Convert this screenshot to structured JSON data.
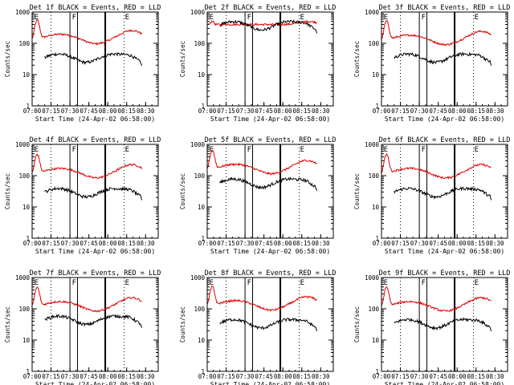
{
  "chart_data": [
    {
      "type": "line",
      "title": "Det 1f BLACK = Events, RED = LLD",
      "xlabel": "Start Time (24-Apr-02 06:58:00)",
      "ylabel": "Counts/sec",
      "x_ticks": [
        "07:00",
        "07:15",
        "07:30",
        "07:45",
        "08:00",
        "08:15",
        "08:30"
      ],
      "y_ticks": [
        "1",
        "10",
        "100",
        "1000"
      ],
      "y_scale": "log",
      "ylim": [
        1,
        1000
      ],
      "markers": [
        "E",
        "F",
        "E"
      ],
      "red_level": 160,
      "black_level": 35,
      "black_start": "07:10",
      "end": "08:27"
    },
    {
      "type": "line",
      "title": "Det 2f BLACK = Events, RED = LLD",
      "xlabel": "Start Time (24-Apr-02 06:58:00)",
      "ylabel": "Counts/sec",
      "x_ticks": [
        "07:00",
        "07:15",
        "07:30",
        "07:45",
        "08:00",
        "08:15",
        "08:30"
      ],
      "y_ticks": [
        "1",
        "10",
        "100",
        "1000"
      ],
      "y_scale": "log",
      "ylim": [
        1,
        1000
      ],
      "markers": [
        "E",
        "F",
        "E"
      ],
      "red_level": 400,
      "black_level": 380,
      "black_start": "07:10",
      "end": "08:27"
    },
    {
      "type": "line",
      "title": "Det 3f BLACK = Events, RED = LLD",
      "xlabel": "Start Time (24-Apr-02 06:58:00)",
      "ylabel": "Counts/sec",
      "x_ticks": [
        "07:00",
        "07:15",
        "07:30",
        "07:45",
        "08:00",
        "08:15",
        "08:30"
      ],
      "y_ticks": [
        "1",
        "10",
        "100",
        "1000"
      ],
      "y_scale": "log",
      "ylim": [
        1,
        1000
      ],
      "markers": [
        "E",
        "F",
        "E"
      ],
      "red_level": 150,
      "black_level": 35,
      "black_start": "07:10",
      "end": "08:27"
    },
    {
      "type": "line",
      "title": "Det 4f BLACK = Events, RED = LLD",
      "xlabel": "Start Time (24-Apr-02 06:58:00)",
      "ylabel": "Counts/sec",
      "x_ticks": [
        "07:00",
        "07:15",
        "07:30",
        "07:45",
        "08:00",
        "08:15",
        "08:30"
      ],
      "y_ticks": [
        "1",
        "10",
        "100",
        "1000"
      ],
      "y_scale": "log",
      "ylim": [
        1,
        1000
      ],
      "markers": [
        "E",
        "F",
        "E"
      ],
      "red_level": 140,
      "black_level": 30,
      "black_start": "07:10",
      "end": "08:27"
    },
    {
      "type": "line",
      "title": "Det 5f BLACK = Events, RED = LLD",
      "xlabel": "Start Time (24-Apr-02 06:58:00)",
      "ylabel": "Counts/sec",
      "x_ticks": [
        "07:00",
        "07:15",
        "07:30",
        "07:45",
        "08:00",
        "08:15",
        "08:30"
      ],
      "y_ticks": [
        "1",
        "10",
        "100",
        "1000"
      ],
      "y_scale": "log",
      "ylim": [
        1,
        1000
      ],
      "markers": [
        "E",
        "F",
        "E"
      ],
      "red_level": 190,
      "black_level": 60,
      "black_start": "07:10",
      "end": "08:27"
    },
    {
      "type": "line",
      "title": "Det 6f BLACK = Events, RED = LLD",
      "xlabel": "Start Time (24-Apr-02 06:58:00)",
      "ylabel": "Counts/sec",
      "x_ticks": [
        "07:00",
        "07:15",
        "07:30",
        "07:45",
        "08:00",
        "08:15",
        "08:30"
      ],
      "y_ticks": [
        "1",
        "10",
        "100",
        "1000"
      ],
      "y_scale": "log",
      "ylim": [
        1,
        1000
      ],
      "markers": [
        "E",
        "F",
        "E"
      ],
      "red_level": 140,
      "black_level": 30,
      "black_start": "07:10",
      "end": "08:27"
    },
    {
      "type": "line",
      "title": "Det 7f BLACK = Events, RED = LLD",
      "xlabel": "Start Time (24-Apr-02 06:58:00)",
      "ylabel": "Counts/sec",
      "x_ticks": [
        "07:00",
        "07:15",
        "07:30",
        "07:45",
        "08:00",
        "08:15",
        "08:30"
      ],
      "y_ticks": [
        "1",
        "10",
        "100",
        "1000"
      ],
      "y_scale": "log",
      "ylim": [
        1,
        1000
      ],
      "markers": [
        "E",
        "F",
        "E"
      ],
      "red_level": 140,
      "black_level": 45,
      "black_start": "07:10",
      "end": "08:27"
    },
    {
      "type": "line",
      "title": "Det 8f BLACK = Events, RED = LLD",
      "xlabel": "Start Time (24-Apr-02 06:58:00)",
      "ylabel": "Counts/sec",
      "x_ticks": [
        "07:00",
        "07:15",
        "07:30",
        "07:45",
        "08:00",
        "08:15",
        "08:30"
      ],
      "y_ticks": [
        "1",
        "10",
        "100",
        "1000"
      ],
      "y_scale": "log",
      "ylim": [
        1,
        1000
      ],
      "markers": [
        "E",
        "F",
        "E"
      ],
      "red_level": 150,
      "black_level": 35,
      "black_start": "07:10",
      "end": "08:27"
    },
    {
      "type": "line",
      "title": "Det 9f BLACK = Events, RED = LLD",
      "xlabel": "Start Time (24-Apr-02 06:58:00)",
      "ylabel": "Counts/sec",
      "x_ticks": [
        "07:00",
        "07:15",
        "07:30",
        "07:45",
        "08:00",
        "08:15",
        "08:30"
      ],
      "y_ticks": [
        "1",
        "10",
        "100",
        "1000"
      ],
      "y_scale": "log",
      "ylim": [
        1,
        1000
      ],
      "markers": [
        "E",
        "F",
        "E"
      ],
      "red_level": 140,
      "black_level": 35,
      "black_start": "07:10",
      "end": "08:27"
    }
  ],
  "vlines": {
    "dotted": [
      "07:15",
      "08:13"
    ],
    "solid_thin": [
      "07:30",
      "07:36"
    ],
    "solid_thick": [
      "07:58"
    ]
  },
  "colors": {
    "red": "#dd0000",
    "black": "#000000",
    "frame": "#000000",
    "background": "#ffffff"
  }
}
